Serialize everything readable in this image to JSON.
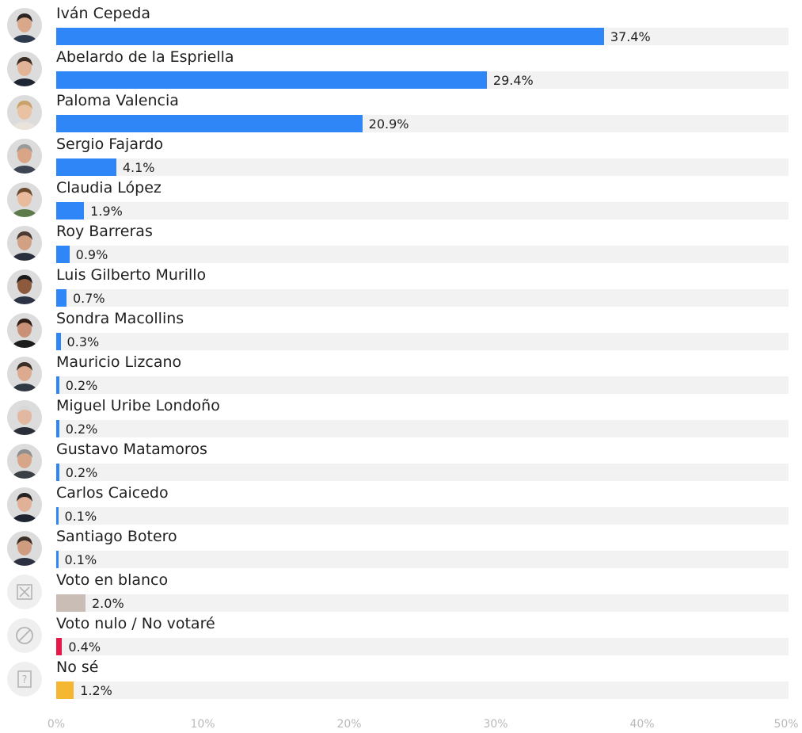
{
  "chart_data": {
    "type": "bar",
    "orientation": "horizontal",
    "categories": [
      "Iván Cepeda",
      "Abelardo de la Espriella",
      "Paloma Valencia",
      "Sergio Fajardo",
      "Claudia López",
      "Roy Barreras",
      "Luis Gilberto Murillo",
      "Sondra Macollins",
      "Mauricio Lizcano",
      "Miguel Uribe Londoño",
      "Gustavo Matamoros",
      "Carlos Caicedo",
      "Santiago Botero",
      "Voto en blanco",
      "Voto nulo / No votaré",
      "No sé"
    ],
    "values": [
      37.4,
      29.4,
      20.9,
      4.1,
      1.9,
      0.9,
      0.7,
      0.3,
      0.2,
      0.2,
      0.2,
      0.1,
      0.1,
      2.0,
      0.4,
      1.2
    ],
    "value_labels": [
      "37.4%",
      "29.4%",
      "20.9%",
      "4.1%",
      "1.9%",
      "0.9%",
      "0.7%",
      "0.3%",
      "0.2%",
      "0.2%",
      "0.2%",
      "0.1%",
      "0.1%",
      "2.0%",
      "0.4%",
      "1.2%"
    ],
    "bar_colors": [
      "#2f86f6",
      "#2f86f6",
      "#2f86f6",
      "#2f86f6",
      "#2f86f6",
      "#2f86f6",
      "#2f86f6",
      "#2f86f6",
      "#2f86f6",
      "#2f86f6",
      "#2f86f6",
      "#2f86f6",
      "#2f86f6",
      "#c9bdb6",
      "#e8174a",
      "#f5b731"
    ],
    "icons": [
      "candidate-photo",
      "candidate-photo",
      "candidate-photo",
      "candidate-photo",
      "candidate-photo",
      "candidate-photo",
      "candidate-photo",
      "candidate-photo",
      "candidate-photo",
      "candidate-photo",
      "candidate-photo",
      "candidate-photo",
      "candidate-photo",
      "blank-vote-icon",
      "null-vote-icon",
      "unknown-icon"
    ],
    "xlim": [
      0,
      50
    ],
    "xticks": [
      "0%",
      "10%",
      "20%",
      "30%",
      "40%",
      "50%"
    ],
    "title": "",
    "xlabel": "",
    "ylabel": "",
    "grid": false,
    "legend": "none"
  }
}
